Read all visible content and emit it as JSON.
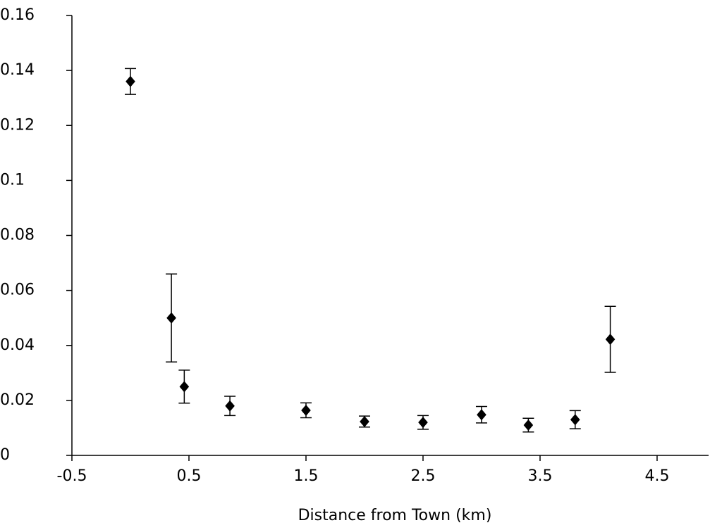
{
  "chart_data": {
    "type": "scatter",
    "x_label": "Distance from Town (km)",
    "x": [
      0,
      0.35,
      0.46,
      0.85,
      1.5,
      2.0,
      2.5,
      3.0,
      3.4,
      3.8,
      4.1
    ],
    "values": [
      0.136,
      0.05,
      0.025,
      0.018,
      0.0164,
      0.0123,
      0.012,
      0.0148,
      0.011,
      0.013,
      0.0422
    ],
    "errors": [
      0.0047,
      0.016,
      0.006,
      0.0035,
      0.0027,
      0.002,
      0.0025,
      0.003,
      0.0025,
      0.0033,
      0.012
    ],
    "color": "#000000",
    "xlim": [
      -0.5,
      4.94
    ],
    "xticks": [
      -0.5,
      0.5,
      1.5,
      2.5,
      3.5,
      4.5
    ],
    "ylim": [
      0,
      0.16
    ],
    "yticks": [
      0,
      0.02,
      0.04,
      0.06,
      0.08,
      0.1,
      0.12,
      0.14,
      0.16
    ]
  }
}
